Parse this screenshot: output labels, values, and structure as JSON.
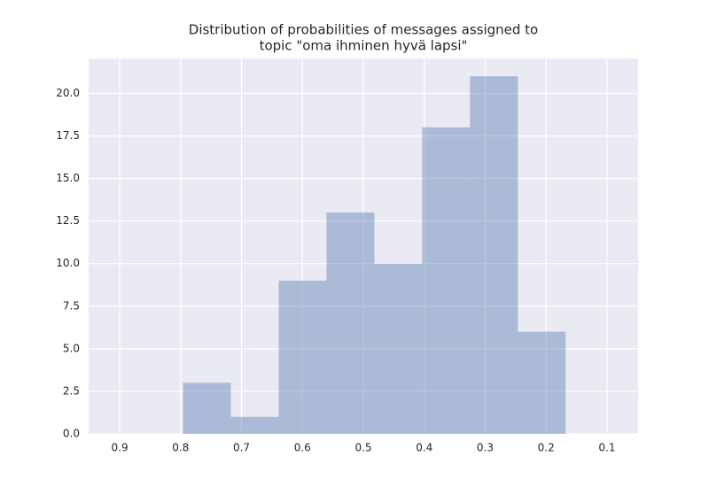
{
  "chart_data": {
    "type": "histogram",
    "title": [
      "Distribution of probabilities of messages assigned to",
      "topic \"oma ihminen hyvä lapsi\""
    ],
    "bins": [
      0.168,
      0.2465,
      0.325,
      0.4035,
      0.482,
      0.5605,
      0.639,
      0.7175,
      0.796
    ],
    "values": [
      6,
      21,
      18,
      10,
      13,
      9,
      1,
      3
    ],
    "color": "#4c72b0",
    "alpha": 0.4,
    "xlim": [
      0.951,
      0.049
    ],
    "xticks": [
      0.9,
      0.8,
      0.7,
      0.6,
      0.5,
      0.4,
      0.3,
      0.2,
      0.1
    ],
    "ylim": [
      0,
      22.05
    ],
    "yticks": [
      {
        "value": 0,
        "label": "0.0"
      },
      {
        "value": 2.5,
        "label": "2.5"
      },
      {
        "value": 5,
        "label": "5.0"
      },
      {
        "value": 7.5,
        "label": "7.5"
      },
      {
        "value": 10,
        "label": "10.0"
      },
      {
        "value": 12.5,
        "label": "12.5"
      },
      {
        "value": 15,
        "label": "15.0"
      },
      {
        "value": 17.5,
        "label": "17.5"
      },
      {
        "value": 20,
        "label": "20.0"
      }
    ],
    "grid": true
  }
}
